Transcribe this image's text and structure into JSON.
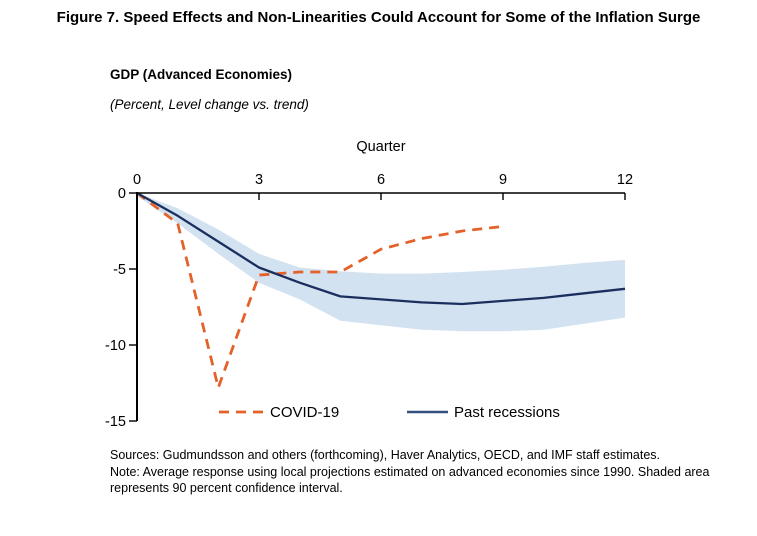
{
  "figure": {
    "title": "Figure 7. Speed Effects and Non-Linearities Could Account for Some of the Inflation Surge",
    "heading": "GDP (Advanced Economies)",
    "subtitle": "(Percent, Level change vs. trend)",
    "sources": "Sources: Gudmundsson and others (forthcoming), Haver Analytics, OECD, and IMF staff estimates.",
    "note": "Note: Average response using local projections estimated on advanced economies since 1990. Shaded area represents 90 percent confidence interval."
  },
  "chart_data": {
    "type": "line",
    "xlabel": "Quarter",
    "ylabel": "Percent, Level change vs. trend",
    "xlim": [
      0,
      12
    ],
    "ylim": [
      -15,
      0
    ],
    "x_ticks": [
      0,
      3,
      6,
      9,
      12
    ],
    "y_ticks": [
      0,
      -5,
      -10,
      -15
    ],
    "grid": false,
    "legend_position": "bottom-inside",
    "series": [
      {
        "name": "COVID-19",
        "style": "dashed",
        "color": "#e4612a",
        "x": [
          0,
          1,
          2,
          3,
          4,
          5,
          6,
          7,
          8,
          9
        ],
        "values": [
          0,
          -2.0,
          -12.8,
          -5.4,
          -5.2,
          -5.2,
          -3.7,
          -3.0,
          -2.5,
          -2.2
        ]
      },
      {
        "name": "Past recessions",
        "style": "solid",
        "color": "#1a2f5e",
        "x": [
          0,
          1,
          2,
          3,
          4,
          5,
          6,
          7,
          8,
          9,
          10,
          11,
          12
        ],
        "values": [
          0,
          -1.5,
          -3.2,
          -4.9,
          -5.9,
          -6.8,
          -7.0,
          -7.2,
          -7.3,
          -7.1,
          -6.9,
          -6.6,
          -6.3
        ]
      }
    ],
    "band": {
      "label": "90 percent confidence interval",
      "color": "#d3e2f1",
      "x": [
        0,
        1,
        2,
        3,
        4,
        5,
        6,
        7,
        8,
        9,
        10,
        11,
        12
      ],
      "upper": [
        0,
        -1.0,
        -2.4,
        -4.0,
        -4.9,
        -5.15,
        -5.3,
        -5.3,
        -5.2,
        -5.05,
        -4.85,
        -4.6,
        -4.4
      ],
      "lower": [
        -0.2,
        -2.0,
        -4.0,
        -5.9,
        -7.0,
        -8.4,
        -8.7,
        -9.0,
        -9.1,
        -9.1,
        -9.0,
        -8.6,
        -8.2
      ]
    }
  }
}
